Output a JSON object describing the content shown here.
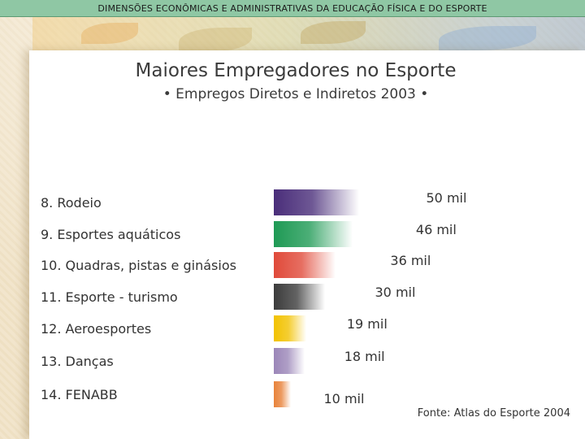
{
  "header": {
    "text": "DIMENSÕES ECONÔMICAS E ADMINISTRATIVAS DA EDUCAÇÃO FÍSICA E DO ESPORTE"
  },
  "chart_data": {
    "type": "bar",
    "orientation": "horizontal",
    "title": "Maiores Empregadores no Esporte",
    "subtitle": "• Empregos Diretos e Indiretos 2003 •",
    "categories": [
      "8. Rodeio",
      "9. Esportes aquáticos",
      "10. Quadras, pistas e ginásios",
      "11. Esporte - turismo",
      "12. Aeroesportes",
      "13. Danças",
      "14. FENABB"
    ],
    "values": [
      50,
      46,
      36,
      30,
      19,
      18,
      10
    ],
    "value_labels": [
      "50 mil",
      "46 mil",
      "36 mil",
      "30 mil",
      "19 mil",
      "18 mil",
      "10 mil"
    ],
    "bar_colors": [
      "#4a2e7a",
      "#1f9a55",
      "#e04a3a",
      "#3c3c3c",
      "#f2c200",
      "#9b86b8",
      "#e8823a"
    ],
    "grid": false,
    "legend": "none",
    "source": "Fonte: Atlas do Esporte 2004"
  }
}
